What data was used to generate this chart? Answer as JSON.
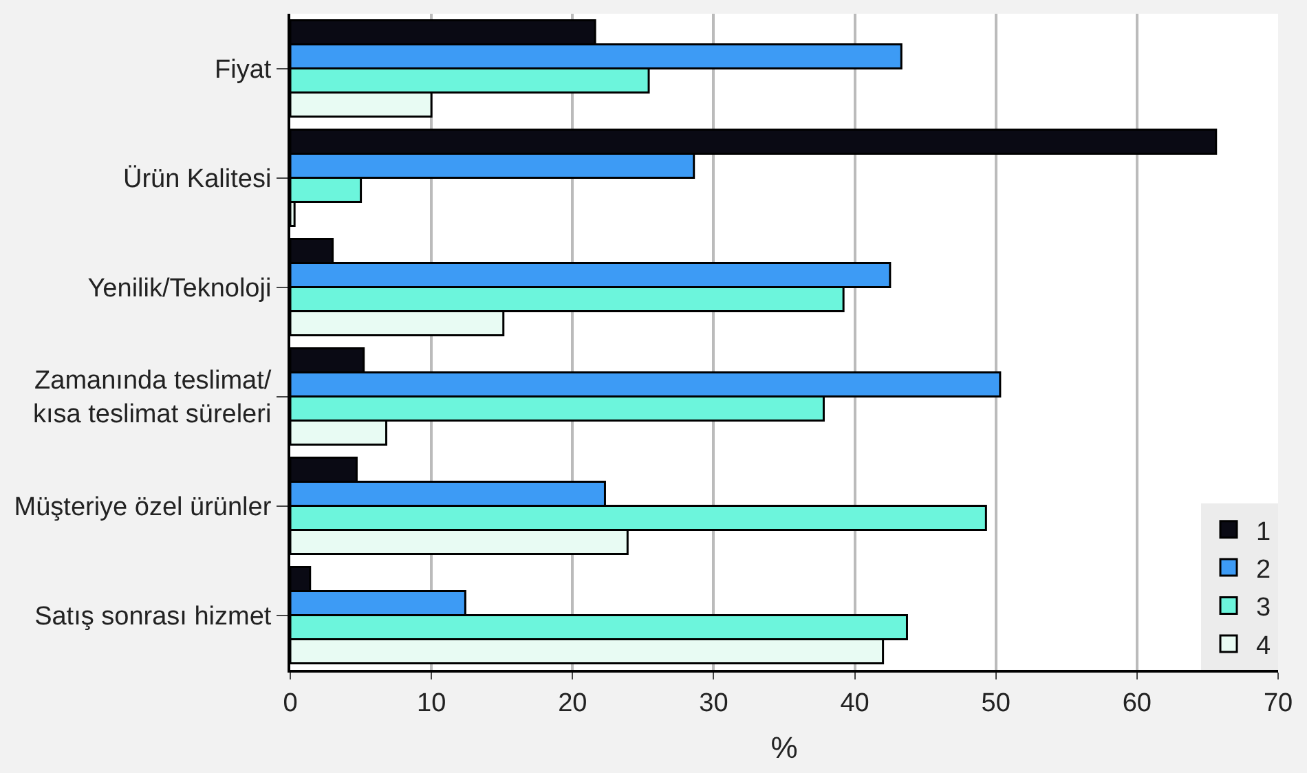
{
  "chart_data": {
    "type": "bar",
    "orientation": "horizontal",
    "xlabel": "%",
    "categories": [
      "Fiyat",
      "Ürün Kalitesi",
      "Yenilik/Teknoloji",
      "Zamanında teslimat/\nkısa teslimat süreleri",
      "Müşteriye özel ürünler",
      "Satış sonrası hizmet"
    ],
    "series": [
      {
        "name": "1",
        "color": "#0a0a14",
        "values": [
          21.6,
          65.6,
          3.0,
          5.2,
          4.7,
          1.4
        ]
      },
      {
        "name": "2",
        "color": "#3d9bf5",
        "values": [
          43.3,
          28.6,
          42.5,
          50.3,
          22.3,
          12.4
        ]
      },
      {
        "name": "3",
        "color": "#6cf5dc",
        "values": [
          25.4,
          5.0,
          39.2,
          37.8,
          49.3,
          43.7
        ]
      },
      {
        "name": "4",
        "color": "#e8fbf3",
        "values": [
          10.0,
          0.3,
          15.1,
          6.8,
          23.9,
          42.0
        ]
      }
    ],
    "xlim": [
      0,
      70
    ],
    "xticks": [
      0,
      10,
      20,
      30,
      40,
      50,
      60,
      70
    ],
    "grid": "x",
    "legend": "bottom right"
  }
}
